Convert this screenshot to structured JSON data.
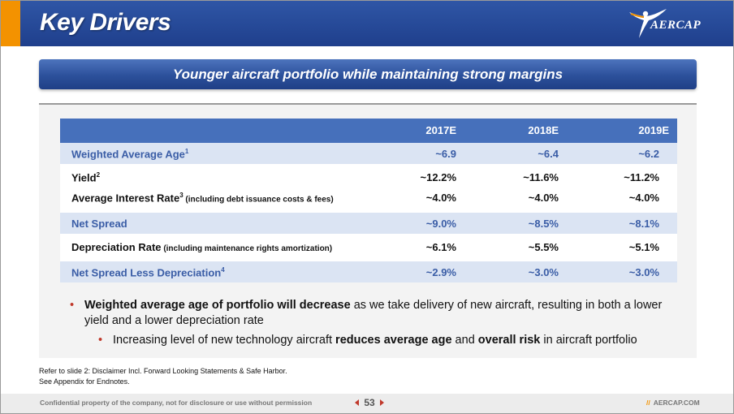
{
  "header": {
    "title": "Key Drivers",
    "logo_text": "AERCAP",
    "brand_blue": "#1f3f8c",
    "accent_orange": "#f39200"
  },
  "banner": {
    "text": "Younger aircraft portfolio while maintaining strong margins"
  },
  "table": {
    "columns": [
      "2017E",
      "2018E",
      "2019E"
    ],
    "rows": [
      {
        "label": "Weighted Average Age",
        "sup": "1",
        "note": "",
        "values": [
          "~6.9",
          "~6.4",
          "~6.2"
        ]
      },
      {
        "label": "Yield",
        "sup": "2",
        "note": "",
        "values": [
          "~12.2%",
          "~11.6%",
          "~11.2%"
        ]
      },
      {
        "label": "Average Interest Rate",
        "sup": "3",
        "note": " (including debt issuance costs & fees)",
        "values": [
          "~4.0%",
          "~4.0%",
          "~4.0%"
        ]
      },
      {
        "label": "Net Spread",
        "sup": "",
        "note": "",
        "values": [
          "~9.0%",
          "~8.5%",
          "~8.1%"
        ]
      },
      {
        "label": "Depreciation Rate",
        "sup": "",
        "note": " (including maintenance rights amortization)",
        "values": [
          "~6.1%",
          "~5.5%",
          "~5.1%"
        ]
      },
      {
        "label": "Net Spread Less Depreciation",
        "sup": "4",
        "note": "",
        "values": [
          "~2.9%",
          "~3.0%",
          "~3.0%"
        ]
      }
    ]
  },
  "bullets": {
    "b1_bold": "Weighted average age of portfolio will decrease",
    "b1_rest": " as we take delivery of new aircraft, resulting in both a lower yield and a lower depreciation rate",
    "b2_part1": "Increasing level of new technology aircraft ",
    "b2_bold1": "reduces average age",
    "b2_part2": " and ",
    "b2_bold2": "overall risk",
    "b2_part3": " in aircraft portfolio"
  },
  "footnotes": {
    "line1": "Refer to slide 2: Disclaimer Incl. Forward Looking Statements & Safe Harbor.",
    "line2": "See Appendix for Endnotes."
  },
  "footer": {
    "confidential": "Confidential property of the company, not for disclosure or use without permission",
    "page_number": "53",
    "slashes": "//",
    "website": "AERCAP.COM"
  }
}
